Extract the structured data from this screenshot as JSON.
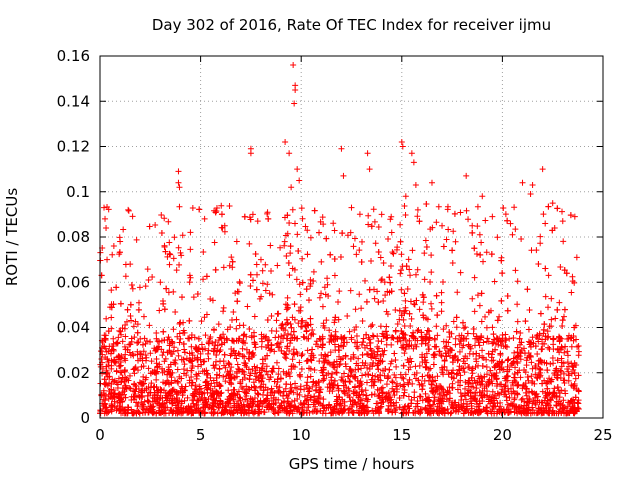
{
  "chart_data": {
    "type": "scatter",
    "title": "Day 302 of 2016, Rate Of TEC Index for receiver ijmu",
    "xlabel": "GPS time / hours",
    "ylabel": "ROTI / TECUs",
    "xlim": [
      0,
      25
    ],
    "ylim": [
      0,
      0.16
    ],
    "xticks": [
      "0",
      "5",
      "10",
      "15",
      "20",
      "25"
    ],
    "yticks": [
      "0",
      "0.02",
      "0.04",
      "0.06",
      "0.08",
      "0.1",
      "0.12",
      "0.14",
      "0.16"
    ],
    "grid": true,
    "marker": "+",
    "series": [
      {
        "name": "ROTI",
        "color": "#ff0000",
        "points": [
          [
            0.1,
            0.031
          ],
          [
            0.2,
            0.093
          ],
          [
            0.25,
            0.088
          ],
          [
            0.3,
            0.084
          ],
          [
            0.35,
            0.07
          ],
          [
            0.5,
            0.049
          ],
          [
            1.0,
            0.078
          ],
          [
            1.4,
            0.092
          ],
          [
            1.5,
            0.068
          ],
          [
            2.0,
            0.035
          ],
          [
            3.0,
            0.06
          ],
          [
            3.9,
            0.109
          ],
          [
            3.9,
            0.104
          ],
          [
            3.95,
            0.102
          ],
          [
            4.0,
            0.073
          ],
          [
            4.5,
            0.062
          ],
          [
            5.2,
            0.088
          ],
          [
            6.2,
            0.085
          ],
          [
            6.8,
            0.078
          ],
          [
            7.5,
            0.119
          ],
          [
            7.5,
            0.117
          ],
          [
            7.6,
            0.09
          ],
          [
            8.0,
            0.07
          ],
          [
            8.5,
            0.065
          ],
          [
            9.2,
            0.122
          ],
          [
            9.4,
            0.117
          ],
          [
            9.6,
            0.156
          ],
          [
            9.7,
            0.147
          ],
          [
            9.7,
            0.145
          ],
          [
            9.65,
            0.139
          ],
          [
            9.8,
            0.11
          ],
          [
            9.5,
            0.102
          ],
          [
            9.9,
            0.105
          ],
          [
            10.3,
            0.083
          ],
          [
            11.0,
            0.069
          ],
          [
            12.0,
            0.119
          ],
          [
            12.1,
            0.107
          ],
          [
            12.5,
            0.093
          ],
          [
            13.3,
            0.117
          ],
          [
            13.4,
            0.11
          ],
          [
            14.0,
            0.09
          ],
          [
            14.5,
            0.082
          ],
          [
            15.0,
            0.122
          ],
          [
            15.05,
            0.12
          ],
          [
            15.2,
            0.098
          ],
          [
            15.5,
            0.117
          ],
          [
            15.6,
            0.113
          ],
          [
            15.7,
            0.103
          ],
          [
            15.8,
            0.092
          ],
          [
            16.5,
            0.104
          ],
          [
            17.0,
            0.085
          ],
          [
            18.2,
            0.107
          ],
          [
            18.5,
            0.085
          ],
          [
            19.0,
            0.098
          ],
          [
            19.5,
            0.089
          ],
          [
            20.5,
            0.081
          ],
          [
            21.0,
            0.104
          ],
          [
            21.5,
            0.103
          ],
          [
            21.4,
            0.099
          ],
          [
            22.0,
            0.11
          ],
          [
            22.5,
            0.095
          ],
          [
            22.6,
            0.084
          ],
          [
            23.0,
            0.087
          ],
          [
            23.6,
            0.089
          ],
          [
            23.7,
            0.071
          ]
        ],
        "baseline_band": {
          "x_range": [
            0,
            23.8
          ],
          "y_range": [
            0.002,
            0.035
          ],
          "density": "dense",
          "spike_max": 0.095
        }
      }
    ]
  }
}
